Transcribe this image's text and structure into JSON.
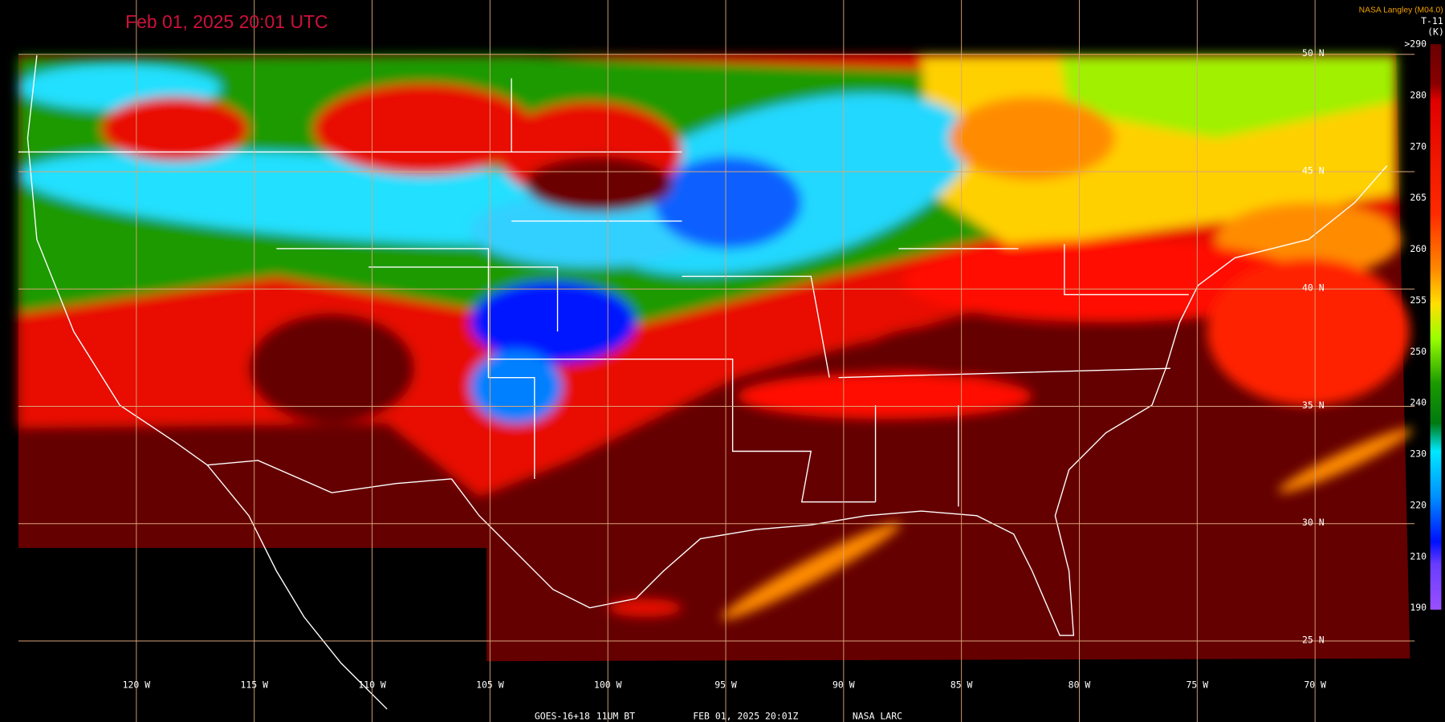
{
  "header": {
    "title": "Feb 01, 2025 20:01 UTC",
    "source": "NASA Langley (M04.0)"
  },
  "legend": {
    "product": "T-11",
    "unit": "(K)",
    "labels": [
      ">290",
      "280",
      "270",
      "265",
      "260",
      "255",
      "250",
      "240",
      "230",
      "220",
      "210",
      "190"
    ]
  },
  "grid": {
    "latitudes": [
      "50 N",
      "45 N",
      "40 N",
      "35 N",
      "30 N",
      "25 N"
    ],
    "longitudes": [
      "120 W",
      "115 W",
      "110 W",
      "105 W",
      "100 W",
      "95 W",
      "90 W",
      "85 W",
      "80 W",
      "75 W",
      "70 W"
    ]
  },
  "footer": {
    "satellite": "GOES-16+18",
    "channel": "11UM BT",
    "time": "FEB 01, 2025 20:01Z",
    "agency": "NASA LARC"
  }
}
